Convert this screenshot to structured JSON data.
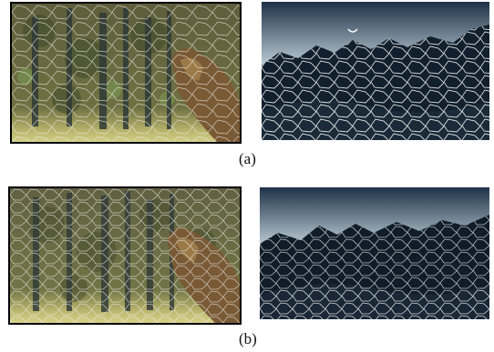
{
  "rows": [
    {
      "caption": "(a)",
      "left_panel": "forest-tree-trunk-segmentation",
      "right_panel": "mountain-range-segmentation"
    },
    {
      "caption": "(b)",
      "left_panel": "forest-tree-trunk-segmentation",
      "right_panel": "mountain-range-segmentation"
    }
  ],
  "colors": {
    "forest_base": "#6a6a40",
    "forest_grass": "#c8c47a",
    "trunk": "#7a5a35",
    "sky_top": "#1e3146",
    "sky_bottom": "#b9c9d3",
    "mountain": "#12202d",
    "boundary": "#ffffff"
  }
}
